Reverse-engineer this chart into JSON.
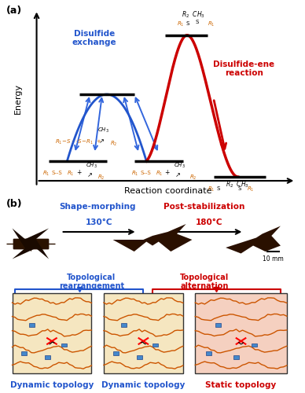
{
  "panel_a_label": "(a)",
  "panel_b_label": "(b)",
  "energy_curve_color": "#cc0000",
  "blue_curve_color": "#2255cc",
  "blue_arrow_color": "#3366dd",
  "orange_color": "#cc6600",
  "black_color": "#111111",
  "xlabel": "Reaction coordinate",
  "ylabel": "Energy",
  "disulfide_exchange_label": "Disulfide\nexchange",
  "disulfide_ene_label": "Disulfide-ene\nreaction",
  "shape_morphing_label": "Shape-morphing",
  "post_stabilization_label": "Post-stabilization",
  "temp1_label": "130°C",
  "temp2_label": "180°C",
  "topo_rearrange_label": "Topological\nrearrangement",
  "topo_alter_label": "Topological\nalternation",
  "dynamic_topology_label": "Dynamic topology",
  "static_topology_label": "Static topology",
  "scale_label": "10 mm",
  "bg_color": "#ffffff",
  "dynamic_box_color": "#f5e6c0",
  "static_box_color": "#f5d0c0"
}
